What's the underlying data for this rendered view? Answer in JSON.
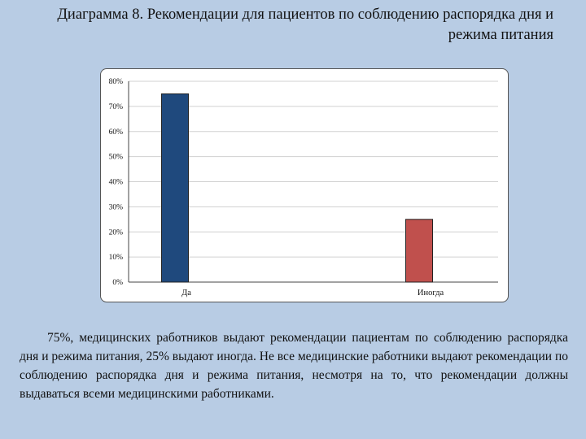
{
  "slide": {
    "title": "Диаграмма 8. Рекомендации для пациентов по соблюдению распорядка дня и режима питания",
    "summary": "75%, медицинских работников выдают рекомендации пациентам по соблюдению распорядка дня и режима питания, 25%  выдают иногда. Не все медицинские работники выдают рекомендации по соблюдению распорядка дня и режима питания, несмотря на то, что рекомендации должны выдаваться всеми медицинскими работниками."
  },
  "chart_data": {
    "type": "bar",
    "title": "",
    "xlabel": "",
    "ylabel": "",
    "categories": [
      "Да",
      "Иногда"
    ],
    "values": [
      75,
      25
    ],
    "colors": [
      "#1f497d",
      "#c0504d"
    ],
    "ylim": [
      0,
      80
    ],
    "yticks": [
      0,
      10,
      20,
      30,
      40,
      50,
      60,
      70,
      80
    ],
    "ytick_labels": [
      "0%",
      "10%",
      "20%",
      "30%",
      "40%",
      "50%",
      "60%",
      "70%",
      "80%"
    ],
    "grid": true,
    "legend": "none"
  }
}
